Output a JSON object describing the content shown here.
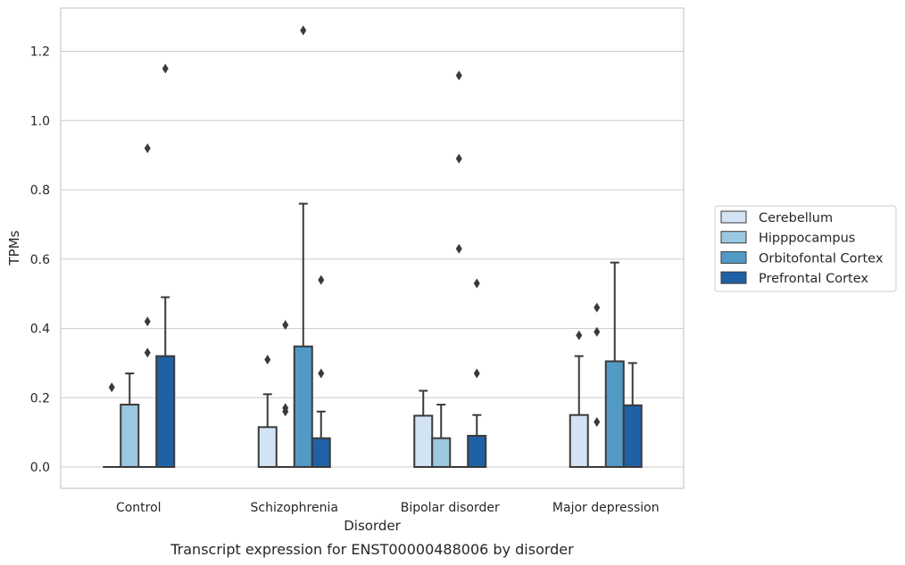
{
  "chart_data": {
    "type": "box",
    "caption": "Transcript expression for ENST00000488006 by disorder",
    "xlabel": "Disorder",
    "ylabel": "TPMs",
    "ylim": [
      -0.06,
      1.32
    ],
    "yticks": [
      0.0,
      0.2,
      0.4,
      0.6,
      0.8,
      1.0,
      1.2
    ],
    "ytick_labels": [
      "0.0",
      "0.2",
      "0.4",
      "0.6",
      "0.8",
      "1.0",
      "1.2"
    ],
    "categories": [
      "Control",
      "Schizophrenia",
      "Bipolar disorder",
      "Major depression"
    ],
    "grid": "horizontal",
    "legend_position": "right",
    "series": [
      {
        "name": "Cerebellum",
        "color": "#d2e3f3",
        "boxes": [
          {
            "q1": 0.0,
            "median": 0.0,
            "q3": 0.0,
            "whislo": 0.0,
            "whishi": 0.0,
            "fliers": [
              0.23
            ]
          },
          {
            "q1": 0.0,
            "median": 0.0,
            "q3": 0.115,
            "whislo": 0.0,
            "whishi": 0.21,
            "fliers": [
              0.31
            ]
          },
          {
            "q1": 0.0,
            "median": 0.0,
            "q3": 0.148,
            "whislo": 0.0,
            "whishi": 0.22,
            "fliers": []
          },
          {
            "q1": 0.0,
            "median": 0.0,
            "q3": 0.15,
            "whislo": 0.0,
            "whishi": 0.32,
            "fliers": [
              0.38
            ]
          }
        ]
      },
      {
        "name": "Hipppocampus",
        "color": "#9ac8e0",
        "boxes": [
          {
            "q1": 0.0,
            "median": 0.0,
            "q3": 0.18,
            "whislo": 0.0,
            "whishi": 0.27,
            "fliers": []
          },
          {
            "q1": 0.0,
            "median": 0.0,
            "q3": 0.0,
            "whislo": 0.0,
            "whishi": 0.0,
            "fliers": [
              0.16,
              0.17,
              0.41
            ]
          },
          {
            "q1": 0.0,
            "median": 0.0,
            "q3": 0.083,
            "whislo": 0.0,
            "whishi": 0.18,
            "fliers": []
          },
          {
            "q1": 0.0,
            "median": 0.0,
            "q3": 0.0,
            "whislo": 0.0,
            "whishi": 0.0,
            "fliers": [
              0.13,
              0.39,
              0.46
            ]
          }
        ]
      },
      {
        "name": "Orbitofontal Cortex",
        "color": "#5399c6",
        "boxes": [
          {
            "q1": 0.0,
            "median": 0.0,
            "q3": 0.0,
            "whislo": 0.0,
            "whishi": 0.0,
            "fliers": [
              0.33,
              0.42,
              0.92
            ]
          },
          {
            "q1": 0.0,
            "median": 0.0,
            "q3": 0.348,
            "whislo": 0.0,
            "whishi": 0.76,
            "fliers": [
              1.26
            ]
          },
          {
            "q1": 0.0,
            "median": 0.0,
            "q3": 0.0,
            "whislo": 0.0,
            "whishi": 0.0,
            "fliers": [
              0.63,
              0.89,
              1.13
            ]
          },
          {
            "q1": 0.0,
            "median": 0.0,
            "q3": 0.305,
            "whislo": 0.0,
            "whishi": 0.59,
            "fliers": []
          }
        ]
      },
      {
        "name": "Prefrontal Cortex",
        "color": "#2060a6",
        "boxes": [
          {
            "q1": 0.0,
            "median": 0.0,
            "q3": 0.32,
            "whislo": 0.0,
            "whishi": 0.49,
            "fliers": [
              1.15
            ]
          },
          {
            "q1": 0.0,
            "median": 0.0,
            "q3": 0.083,
            "whislo": 0.0,
            "whishi": 0.16,
            "fliers": [
              0.27,
              0.54
            ]
          },
          {
            "q1": 0.0,
            "median": 0.0,
            "q3": 0.09,
            "whislo": 0.0,
            "whishi": 0.15,
            "fliers": [
              0.27,
              0.53
            ]
          },
          {
            "q1": 0.0,
            "median": 0.0,
            "q3": 0.178,
            "whislo": 0.0,
            "whishi": 0.3,
            "fliers": []
          }
        ]
      }
    ]
  },
  "colors": {
    "grid": "#cccccc",
    "axes_frame": "#cccccc",
    "box_edge": "#3a3a3a",
    "legend_frame": "#cccccc"
  }
}
